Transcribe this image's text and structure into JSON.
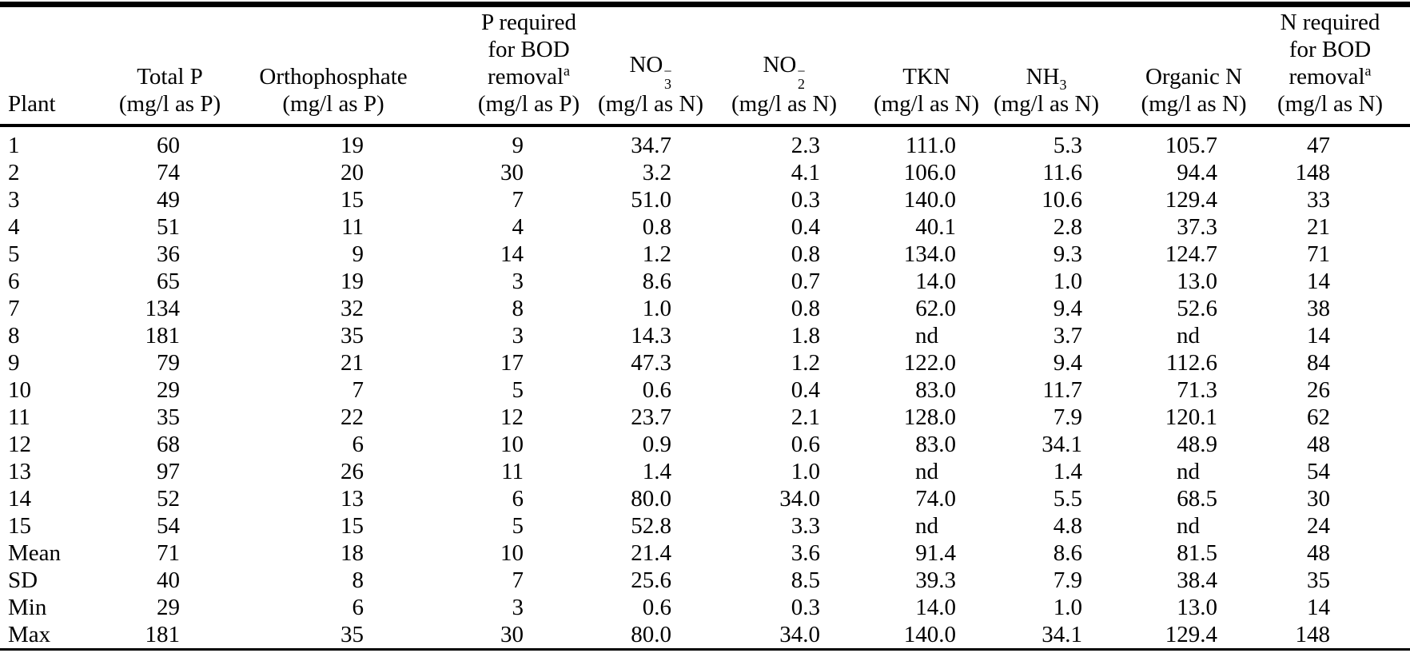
{
  "table": {
    "columns": [
      {
        "id": "plant",
        "align": "left",
        "header_lines": [
          [
            {
              "text": "Plant"
            }
          ]
        ]
      },
      {
        "id": "total-p",
        "align": "right",
        "header_lines": [
          [
            {
              "text": "Total P"
            }
          ],
          [
            {
              "text": "(mg/l as P)"
            }
          ]
        ]
      },
      {
        "id": "orthophosphate",
        "align": "right",
        "header_lines": [
          [
            {
              "text": "Orthophosphate"
            }
          ],
          [
            {
              "text": "(mg/l as P)"
            }
          ]
        ]
      },
      {
        "id": "p-required-for-bod-removal",
        "align": "right",
        "header_lines": [
          [
            {
              "text": "P required"
            }
          ],
          [
            {
              "text": "for BOD"
            }
          ],
          [
            {
              "text": "removal"
            },
            {
              "text": "a",
              "style": "sup"
            }
          ],
          [
            {
              "text": "(mg/l as P)"
            }
          ]
        ]
      },
      {
        "id": "no3",
        "align": "right",
        "header_lines": [
          [
            {
              "text": "NO"
            },
            {
              "stack_sup": "−",
              "stack_sub": "3"
            }
          ],
          [
            {
              "text": "(mg/l as N)"
            }
          ]
        ]
      },
      {
        "id": "no2",
        "align": "right",
        "header_lines": [
          [
            {
              "text": "NO"
            },
            {
              "stack_sup": "−",
              "stack_sub": "2"
            }
          ],
          [
            {
              "text": "(mg/l as N)"
            }
          ]
        ]
      },
      {
        "id": "tkn",
        "align": "right",
        "header_lines": [
          [
            {
              "text": "TKN"
            }
          ],
          [
            {
              "text": "(mg/l as N)"
            }
          ]
        ]
      },
      {
        "id": "nh3",
        "align": "right",
        "header_lines": [
          [
            {
              "text": "NH"
            },
            {
              "text": "3",
              "style": "sub"
            }
          ],
          [
            {
              "text": "(mg/l as N)"
            }
          ]
        ]
      },
      {
        "id": "organic-n",
        "align": "right",
        "header_lines": [
          [
            {
              "text": "Organic N"
            }
          ],
          [
            {
              "text": "(mg/l as N)"
            }
          ]
        ]
      },
      {
        "id": "n-required-for-bod-removal",
        "align": "right",
        "header_lines": [
          [
            {
              "text": "N required"
            }
          ],
          [
            {
              "text": "for BOD"
            }
          ],
          [
            {
              "text": "removal"
            },
            {
              "text": "a",
              "style": "sup"
            }
          ],
          [
            {
              "text": "(mg/l as N)"
            }
          ]
        ]
      }
    ],
    "rows": [
      [
        "1",
        "60",
        "19",
        "9",
        "34.7",
        "2.3",
        "111.0",
        "5.3",
        "105.7",
        "47"
      ],
      [
        "2",
        "74",
        "20",
        "30",
        "3.2",
        "4.1",
        "106.0",
        "11.6",
        "94.4",
        "148"
      ],
      [
        "3",
        "49",
        "15",
        "7",
        "51.0",
        "0.3",
        "140.0",
        "10.6",
        "129.4",
        "33"
      ],
      [
        "4",
        "51",
        "11",
        "4",
        "0.8",
        "0.4",
        "40.1",
        "2.8",
        "37.3",
        "21"
      ],
      [
        "5",
        "36",
        "9",
        "14",
        "1.2",
        "0.8",
        "134.0",
        "9.3",
        "124.7",
        "71"
      ],
      [
        "6",
        "65",
        "19",
        "3",
        "8.6",
        "0.7",
        "14.0",
        "1.0",
        "13.0",
        "14"
      ],
      [
        "7",
        "134",
        "32",
        "8",
        "1.0",
        "0.8",
        "62.0",
        "9.4",
        "52.6",
        "38"
      ],
      [
        "8",
        "181",
        "35",
        "3",
        "14.3",
        "1.8",
        "nd",
        "3.7",
        "nd",
        "14"
      ],
      [
        "9",
        "79",
        "21",
        "17",
        "47.3",
        "1.2",
        "122.0",
        "9.4",
        "112.6",
        "84"
      ],
      [
        "10",
        "29",
        "7",
        "5",
        "0.6",
        "0.4",
        "83.0",
        "11.7",
        "71.3",
        "26"
      ],
      [
        "11",
        "35",
        "22",
        "12",
        "23.7",
        "2.1",
        "128.0",
        "7.9",
        "120.1",
        "62"
      ],
      [
        "12",
        "68",
        "6",
        "10",
        "0.9",
        "0.6",
        "83.0",
        "34.1",
        "48.9",
        "48"
      ],
      [
        "13",
        "97",
        "26",
        "11",
        "1.4",
        "1.0",
        "nd",
        "1.4",
        "nd",
        "54"
      ],
      [
        "14",
        "52",
        "13",
        "6",
        "80.0",
        "34.0",
        "74.0",
        "5.5",
        "68.5",
        "30"
      ],
      [
        "15",
        "54",
        "15",
        "5",
        "52.8",
        "3.3",
        "nd",
        "4.8",
        "nd",
        "24"
      ],
      [
        "Mean",
        "71",
        "18",
        "10",
        "21.4",
        "3.6",
        "91.4",
        "8.6",
        "81.5",
        "48"
      ],
      [
        "SD",
        "40",
        "8",
        "7",
        "25.6",
        "8.5",
        "39.3",
        "7.9",
        "38.4",
        "35"
      ],
      [
        "Min",
        "29",
        "6",
        "3",
        "0.6",
        "0.3",
        "14.0",
        "1.0",
        "13.0",
        "14"
      ],
      [
        "Max",
        "181",
        "35",
        "30",
        "80.0",
        "34.0",
        "140.0",
        "34.1",
        "129.4",
        "148"
      ]
    ],
    "no_data_marker": "nd"
  }
}
